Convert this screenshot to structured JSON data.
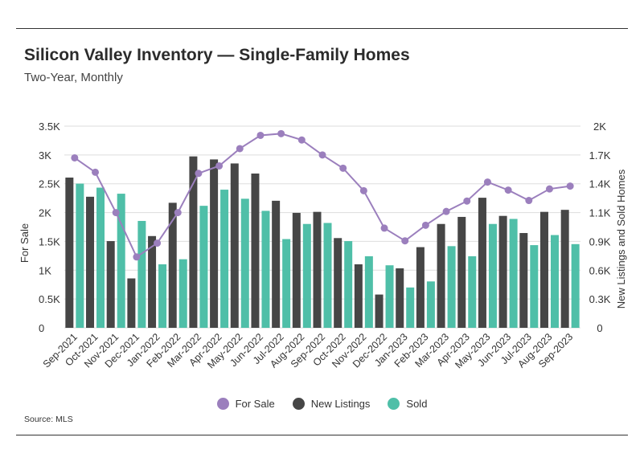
{
  "title": "Silicon Valley Inventory — Single-Family Homes",
  "subtitle": "Two-Year, Monthly",
  "source": "Source: MLS",
  "colors": {
    "for_sale": "#9b7fbd",
    "new_listings": "#464646",
    "sold": "#4fbfa8",
    "grid": "#dddddd",
    "axis_text": "#333333"
  },
  "chart_data": {
    "type": "bar",
    "categories": [
      "Sep-2021",
      "Oct-2021",
      "Nov-2021",
      "Dec-2021",
      "Jan-2022",
      "Feb-2022",
      "Mar-2022",
      "Apr-2022",
      "May-2022",
      "Jun-2022",
      "Jul-2022",
      "Aug-2022",
      "Sep-2022",
      "Oct-2022",
      "Nov-2022",
      "Dec-2022",
      "Jan-2023",
      "Feb-2023",
      "Mar-2023",
      "Apr-2023",
      "May-2023",
      "Jun-2023",
      "Jul-2023",
      "Aug-2023",
      "Sep-2023"
    ],
    "series": [
      {
        "name": "For Sale",
        "kind": "line",
        "axis": "left",
        "values": [
          2950,
          2700,
          2000,
          1230,
          1470,
          2000,
          2680,
          2810,
          3110,
          3340,
          3370,
          3260,
          3000,
          2770,
          2380,
          1730,
          1510,
          1780,
          2020,
          2200,
          2530,
          2390,
          2210,
          2410,
          2460
        ]
      },
      {
        "name": "New Listings",
        "kind": "bar",
        "axis": "right",
        "values": [
          1490,
          1300,
          860,
          490,
          910,
          1240,
          1700,
          1670,
          1630,
          1530,
          1260,
          1140,
          1150,
          890,
          630,
          330,
          590,
          800,
          1030,
          1100,
          1290,
          1110,
          940,
          1150,
          1170
        ]
      },
      {
        "name": "Sold",
        "kind": "bar",
        "axis": "right",
        "values": [
          1430,
          1390,
          1330,
          1060,
          630,
          680,
          1210,
          1370,
          1280,
          1160,
          880,
          1030,
          1040,
          860,
          710,
          620,
          400,
          460,
          810,
          710,
          1030,
          1080,
          820,
          920,
          830
        ]
      }
    ],
    "y_left": {
      "label": "For Sale",
      "ylim": [
        0,
        3500
      ],
      "ticks": [
        "0",
        "0.5K",
        "1K",
        "1.5K",
        "2K",
        "2.5K",
        "3K",
        "3.5K"
      ]
    },
    "y_right": {
      "label": "New Listings and Sold Homes",
      "ylim": [
        0,
        2000
      ],
      "ticks": [
        "0",
        "0.3K",
        "0.6K",
        "0.9K",
        "1.1K",
        "1.4K",
        "1.7K",
        "2K"
      ]
    },
    "grid": true,
    "legend": "bottom-center"
  }
}
